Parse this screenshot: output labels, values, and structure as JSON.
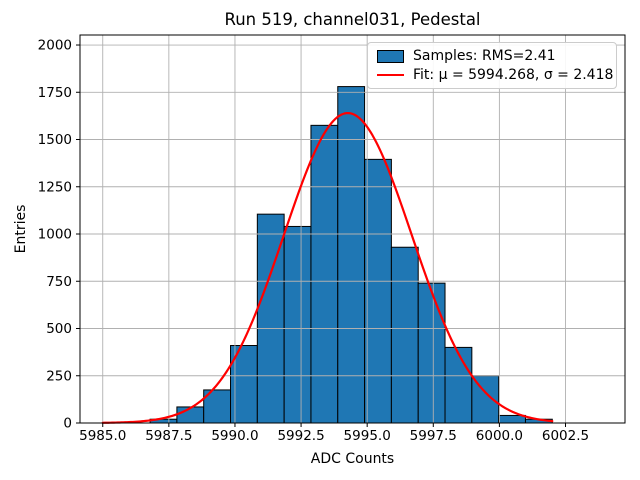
{
  "chart_data": {
    "type": "bar",
    "subtype": "histogram-with-gaussian-fit",
    "title": "Run 519, channel031, Pedestal",
    "xlabel": "ADC Counts",
    "ylabel": "Entries",
    "xlim": [
      5984.14,
      6004.75
    ],
    "ylim": [
      0,
      2053
    ],
    "xticks": [
      5985.0,
      5987.5,
      5990.0,
      5992.5,
      5995.0,
      5997.5,
      6000.0,
      6002.5
    ],
    "xtick_labels": [
      "5985.0",
      "5987.5",
      "5990.0",
      "5992.5",
      "5995.0",
      "5997.5",
      "6000.0",
      "6002.5"
    ],
    "yticks": [
      0,
      250,
      500,
      750,
      1000,
      1250,
      1500,
      1750,
      2000
    ],
    "ytick_labels": [
      "0",
      "250",
      "500",
      "750",
      "1000",
      "1250",
      "1500",
      "1750",
      "2000"
    ],
    "grid": true,
    "grid_over_bars": true,
    "colors": {
      "bar_fill": "#1f77b4",
      "bar_edge": "#000000",
      "fit_line": "#ff0000",
      "grid": "#b0b0b0",
      "axes": "#000000",
      "legend_border": "#cccccc"
    },
    "bins": {
      "start": 5986.79,
      "width": 1.014,
      "counts": [
        20,
        85,
        175,
        410,
        1105,
        1040,
        1575,
        1780,
        1395,
        930,
        740,
        400,
        250,
        40,
        20
      ]
    },
    "fit_curve": {
      "mu": 5994.268,
      "sigma": 2.418,
      "amplitude": 1640,
      "x_start": 5985.0,
      "x_end": 6002.0
    },
    "legend": {
      "position": "upper right",
      "items": [
        {
          "label": "Samples: RMS=2.41",
          "swatch": "patch"
        },
        {
          "label": "Fit: μ = 5994.268, σ = 2.418",
          "swatch": "line"
        }
      ]
    }
  }
}
